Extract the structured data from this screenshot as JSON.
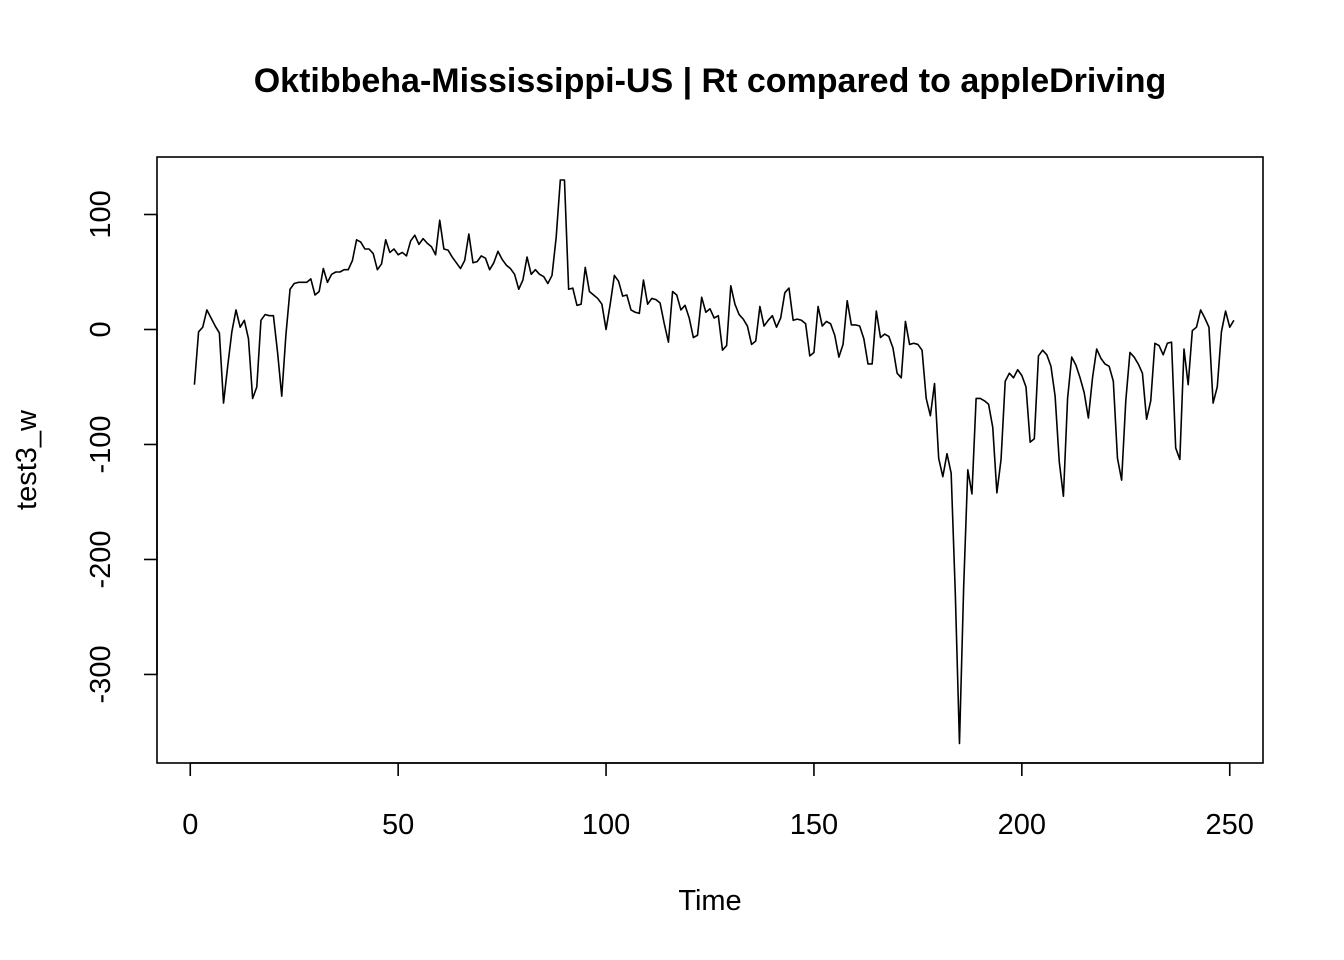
{
  "chart_data": {
    "type": "line",
    "title": "Oktibbeha-Mississippi-US | Rt compared to appleDriving",
    "xlabel": "Time",
    "ylabel": "test3_w",
    "xlim": [
      -8,
      258
    ],
    "ylim": [
      -377,
      150
    ],
    "x_ticks": [
      0,
      50,
      100,
      150,
      200,
      250
    ],
    "x_tick_labels": [
      "0",
      "50",
      "100",
      "150",
      "200",
      "250"
    ],
    "y_ticks": [
      -300,
      -200,
      -100,
      0,
      100
    ],
    "y_tick_labels": [
      "-300",
      "-200",
      "-100",
      "0",
      "100"
    ],
    "grid": false,
    "legend": "none",
    "line_color": "#000000",
    "x_start": 1,
    "series": [
      {
        "values": [
          -48,
          -2,
          2,
          17,
          10,
          3,
          -3,
          -64,
          -32,
          -2,
          17,
          2,
          8,
          -8,
          -60,
          -50,
          8,
          13,
          12,
          12,
          -20,
          -58,
          -5,
          35,
          40,
          41,
          41,
          41,
          44,
          30,
          33,
          53,
          41,
          48,
          50,
          50,
          52,
          52,
          60,
          78,
          76,
          70,
          70,
          66,
          52,
          57,
          78,
          67,
          70,
          65,
          67,
          64,
          77,
          82,
          74,
          79,
          75,
          72,
          65,
          95,
          70,
          69,
          63,
          58,
          53,
          60,
          83,
          58,
          59,
          64,
          62,
          52,
          58,
          68,
          61,
          56,
          53,
          48,
          35,
          43,
          63,
          48,
          52,
          48,
          46,
          40,
          47,
          80,
          130,
          130,
          35,
          36,
          21,
          22,
          54,
          33,
          30,
          27,
          22,
          0,
          22,
          47,
          42,
          29,
          30,
          17,
          15,
          14,
          43,
          22,
          27,
          26,
          23,
          5,
          -11,
          33,
          30,
          17,
          21,
          10,
          -7,
          -5,
          28,
          15,
          18,
          10,
          12,
          -18,
          -14,
          38,
          22,
          13,
          9,
          3,
          -13,
          -10,
          20,
          3,
          8,
          12,
          2,
          10,
          32,
          36,
          8,
          9,
          8,
          5,
          -23,
          -20,
          20,
          3,
          7,
          5,
          -5,
          -24,
          -13,
          25,
          4,
          4,
          3,
          -8,
          -30,
          -30,
          16,
          -7,
          -4,
          -6,
          -16,
          -38,
          -42,
          7,
          -13,
          -12,
          -13,
          -18,
          -60,
          -75,
          -47,
          -112,
          -128,
          -108,
          -125,
          -230,
          -360,
          -225,
          -122,
          -143,
          -60,
          -60,
          -62,
          -65,
          -85,
          -142,
          -113,
          -45,
          -38,
          -42,
          -35,
          -40,
          -50,
          -98,
          -95,
          -23,
          -18,
          -22,
          -32,
          -58,
          -115,
          -145,
          -60,
          -24,
          -31,
          -42,
          -55,
          -77,
          -42,
          -17,
          -25,
          -30,
          -32,
          -45,
          -112,
          -131,
          -62,
          -20,
          -24,
          -30,
          -38,
          -78,
          -62,
          -12,
          -14,
          -22,
          -12,
          -11,
          -103,
          -113,
          -17,
          -48,
          -1,
          2,
          17,
          10,
          2,
          -64,
          -50,
          -2,
          16,
          2,
          8
        ]
      }
    ]
  }
}
